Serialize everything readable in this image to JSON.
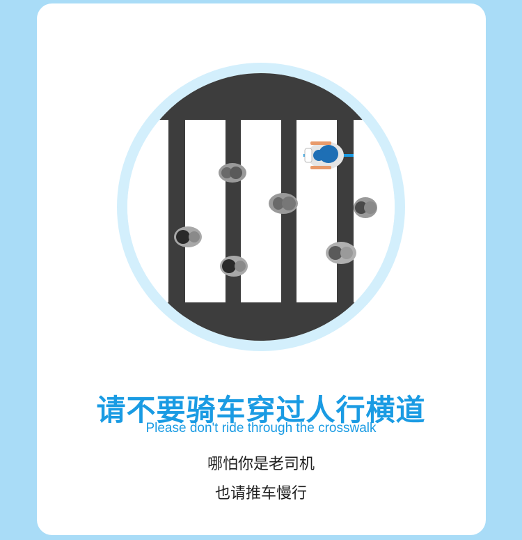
{
  "colors": {
    "background": "#a9dcf7",
    "card": "#ffffff",
    "accent": "#1a9be3",
    "ring": "#d3effc",
    "road": "#3d3d3d",
    "stripe": "#ffffff",
    "text": "#1e1e1e"
  },
  "sign": {
    "title_cn": "请不要骑车穿过人行横道",
    "title_en": "Please don't ride through the crosswalk",
    "line1": "哪怕你是老司机",
    "line2": "也请推车慢行"
  },
  "illustration": {
    "icon": "crosswalk-illustration",
    "pedestrian_count": 7,
    "cyclist_count": 1
  }
}
